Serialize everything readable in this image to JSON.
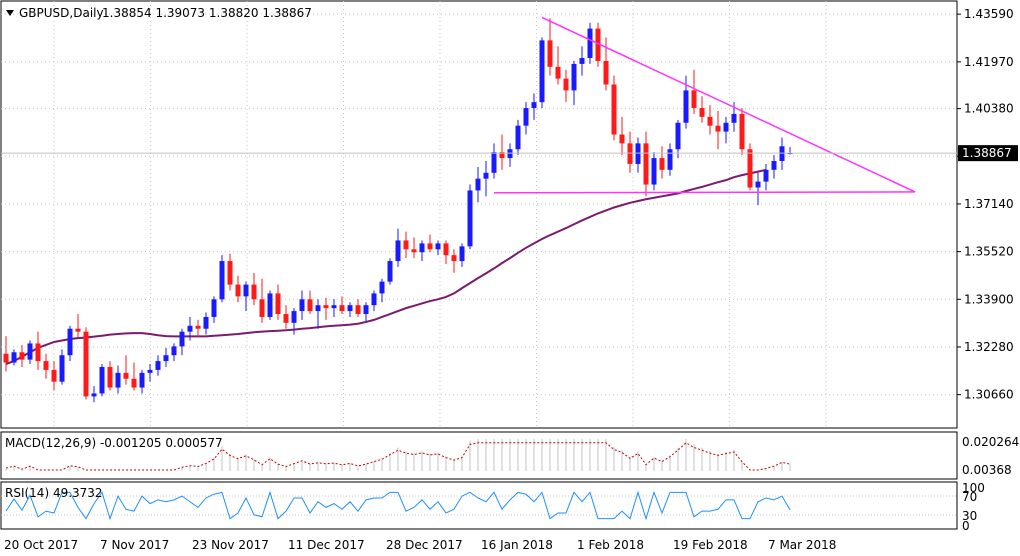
{
  "header": {
    "symbol": "GBPUSD,Daily",
    "ohlc": "1.38854 1.39073 1.38820 1.38867"
  },
  "current_price_label": "1.38867",
  "macd": {
    "label": "MACD(12,26,9) -0.001205 0.000577",
    "axis_labels": [
      "0.020264",
      "0.00368"
    ]
  },
  "rsi": {
    "label": "RSI(14) 49.3732",
    "axis_labels": [
      "100",
      "70",
      "30",
      "0"
    ]
  },
  "colors": {
    "bull": "#1a1aff",
    "bear": "#ff1a1a",
    "ma": "#7b1a6e",
    "triangle": "#ff33ff",
    "macd_hist": "#c0c0c0",
    "macd_signal": "#c00000",
    "rsi_line": "#1e90ff",
    "grid": "#c8c8c8"
  },
  "chart_data": [
    {
      "type": "candlestick",
      "title": "GBPUSD,Daily",
      "x_labels": [
        "20 Oct 2017",
        "7 Nov 2017",
        "23 Nov 2017",
        "11 Dec 2017",
        "28 Dec 2017",
        "16 Jan 2018",
        "1 Feb 2018",
        "19 Feb 2018",
        "7 Mar 2018"
      ],
      "y_tick_labels": [
        "1.43590",
        "1.41970",
        "1.40380",
        "1.38760",
        "1.37140",
        "1.35520",
        "1.33900",
        "1.32280",
        "1.30660"
      ],
      "ylim": [
        1.2956,
        1.4397
      ],
      "grid": true,
      "candles": [
        [
          1.3205,
          1.3265,
          1.3145,
          1.3175
        ],
        [
          1.3175,
          1.322,
          1.3165,
          1.321
        ],
        [
          1.321,
          1.3235,
          1.316,
          1.3185
        ],
        [
          1.3185,
          1.325,
          1.317,
          1.324
        ],
        [
          1.324,
          1.328,
          1.315,
          1.318
        ],
        [
          1.318,
          1.3205,
          1.312,
          1.315
        ],
        [
          1.315,
          1.318,
          1.308,
          1.311
        ],
        [
          1.311,
          1.322,
          1.31,
          1.32
        ],
        [
          1.32,
          1.33,
          1.318,
          1.329
        ],
        [
          1.329,
          1.334,
          1.326,
          1.328
        ],
        [
          1.328,
          1.3295,
          1.305,
          1.306
        ],
        [
          1.306,
          1.3095,
          1.304,
          1.307
        ],
        [
          1.307,
          1.317,
          1.306,
          1.316
        ],
        [
          1.316,
          1.318,
          1.308,
          1.309
        ],
        [
          1.309,
          1.3165,
          1.307,
          1.314
        ],
        [
          1.314,
          1.32,
          1.31,
          1.312
        ],
        [
          1.312,
          1.3175,
          1.308,
          1.309
        ],
        [
          1.309,
          1.315,
          1.307,
          1.314
        ],
        [
          1.314,
          1.317,
          1.311,
          1.315
        ],
        [
          1.315,
          1.32,
          1.313,
          1.318
        ],
        [
          1.318,
          1.3225,
          1.316,
          1.32
        ],
        [
          1.32,
          1.324,
          1.318,
          1.323
        ],
        [
          1.323,
          1.329,
          1.32,
          1.328
        ],
        [
          1.328,
          1.333,
          1.325,
          1.33
        ],
        [
          1.33,
          1.332,
          1.326,
          1.329
        ],
        [
          1.329,
          1.3345,
          1.327,
          1.333
        ],
        [
          1.333,
          1.34,
          1.331,
          1.339
        ],
        [
          1.339,
          1.354,
          1.338,
          1.352
        ],
        [
          1.352,
          1.3545,
          1.342,
          1.344
        ],
        [
          1.344,
          1.347,
          1.338,
          1.34
        ],
        [
          1.34,
          1.345,
          1.335,
          1.344
        ],
        [
          1.344,
          1.348,
          1.337,
          1.339
        ],
        [
          1.339,
          1.346,
          1.331,
          1.333
        ],
        [
          1.333,
          1.342,
          1.332,
          1.341
        ],
        [
          1.341,
          1.344,
          1.332,
          1.334
        ],
        [
          1.334,
          1.337,
          1.329,
          1.331
        ],
        [
          1.331,
          1.336,
          1.327,
          1.335
        ],
        [
          1.335,
          1.342,
          1.332,
          1.339
        ],
        [
          1.339,
          1.342,
          1.334,
          1.335
        ],
        [
          1.335,
          1.339,
          1.329,
          1.337
        ],
        [
          1.337,
          1.3395,
          1.332,
          1.336
        ],
        [
          1.336,
          1.339,
          1.333,
          1.337
        ],
        [
          1.337,
          1.34,
          1.334,
          1.335
        ],
        [
          1.335,
          1.338,
          1.333,
          1.337
        ],
        [
          1.337,
          1.339,
          1.333,
          1.334
        ],
        [
          1.334,
          1.338,
          1.331,
          1.337
        ],
        [
          1.337,
          1.342,
          1.335,
          1.341
        ],
        [
          1.341,
          1.346,
          1.338,
          1.345
        ],
        [
          1.345,
          1.353,
          1.344,
          1.352
        ],
        [
          1.352,
          1.363,
          1.35,
          1.359
        ],
        [
          1.359,
          1.362,
          1.353,
          1.356
        ],
        [
          1.356,
          1.36,
          1.353,
          1.355
        ],
        [
          1.355,
          1.359,
          1.352,
          1.358
        ],
        [
          1.358,
          1.361,
          1.355,
          1.356
        ],
        [
          1.356,
          1.359,
          1.354,
          1.358
        ],
        [
          1.358,
          1.359,
          1.351,
          1.354
        ],
        [
          1.354,
          1.356,
          1.348,
          1.352
        ],
        [
          1.352,
          1.358,
          1.35,
          1.357
        ],
        [
          1.357,
          1.378,
          1.356,
          1.376
        ],
        [
          1.376,
          1.384,
          1.372,
          1.38
        ],
        [
          1.38,
          1.386,
          1.374,
          1.382
        ],
        [
          1.382,
          1.392,
          1.38,
          1.389
        ],
        [
          1.389,
          1.395,
          1.383,
          1.387
        ],
        [
          1.387,
          1.392,
          1.384,
          1.39
        ],
        [
          1.39,
          1.4,
          1.388,
          1.398
        ],
        [
          1.398,
          1.406,
          1.395,
          1.404
        ],
        [
          1.404,
          1.409,
          1.4,
          1.406
        ],
        [
          1.406,
          1.428,
          1.404,
          1.427
        ],
        [
          1.427,
          1.4345,
          1.415,
          1.418
        ],
        [
          1.418,
          1.425,
          1.412,
          1.414
        ],
        [
          1.414,
          1.417,
          1.406,
          1.41
        ],
        [
          1.41,
          1.42,
          1.405,
          1.419
        ],
        [
          1.419,
          1.425,
          1.415,
          1.421
        ],
        [
          1.421,
          1.433,
          1.419,
          1.431
        ],
        [
          1.431,
          1.433,
          1.418,
          1.42
        ],
        [
          1.42,
          1.428,
          1.41,
          1.412
        ],
        [
          1.412,
          1.415,
          1.393,
          1.395
        ],
        [
          1.395,
          1.401,
          1.388,
          1.392
        ],
        [
          1.392,
          1.396,
          1.382,
          1.385
        ],
        [
          1.385,
          1.394,
          1.382,
          1.392
        ],
        [
          1.392,
          1.396,
          1.374,
          1.378
        ],
        [
          1.378,
          1.389,
          1.376,
          1.387
        ],
        [
          1.387,
          1.391,
          1.38,
          1.383
        ],
        [
          1.383,
          1.392,
          1.381,
          1.39
        ],
        [
          1.39,
          1.4,
          1.387,
          1.399
        ],
        [
          1.399,
          1.415,
          1.397,
          1.41
        ],
        [
          1.41,
          1.417,
          1.402,
          1.404
        ],
        [
          1.404,
          1.408,
          1.399,
          1.401
        ],
        [
          1.401,
          1.405,
          1.395,
          1.398
        ],
        [
          1.398,
          1.403,
          1.39,
          1.396
        ],
        [
          1.396,
          1.401,
          1.392,
          1.399
        ],
        [
          1.399,
          1.406,
          1.396,
          1.402
        ],
        [
          1.402,
          1.404,
          1.388,
          1.39
        ],
        [
          1.39,
          1.392,
          1.376,
          1.377
        ],
        [
          1.377,
          1.382,
          1.371,
          1.379
        ],
        [
          1.379,
          1.385,
          1.376,
          1.383
        ],
        [
          1.383,
          1.388,
          1.38,
          1.386
        ],
        [
          1.386,
          1.394,
          1.383,
          1.391
        ],
        [
          1.3885,
          1.3907,
          1.3882,
          1.3887
        ]
      ],
      "moving_average": [
        1.317,
        1.318,
        1.3195,
        1.321,
        1.3225,
        1.3235,
        1.3245,
        1.325,
        1.3255,
        1.3258,
        1.326,
        1.3263,
        1.3266,
        1.327,
        1.3272,
        1.3274,
        1.3275,
        1.3275,
        1.3272,
        1.3268,
        1.3265,
        1.3264,
        1.3264,
        1.3264,
        1.3264,
        1.3264,
        1.3266,
        1.3268,
        1.327,
        1.3272,
        1.3275,
        1.3278,
        1.328,
        1.3282,
        1.3283,
        1.3285,
        1.3287,
        1.329,
        1.3292,
        1.3295,
        1.3298,
        1.33,
        1.3302,
        1.3304,
        1.3307,
        1.3313,
        1.332,
        1.333,
        1.334,
        1.335,
        1.336,
        1.3368,
        1.3376,
        1.3384,
        1.339,
        1.3398,
        1.341,
        1.3428,
        1.3445,
        1.3462,
        1.3478,
        1.3495,
        1.3513,
        1.353,
        1.3548,
        1.3565,
        1.358,
        1.3595,
        1.3608,
        1.362,
        1.3632,
        1.3645,
        1.3658,
        1.367,
        1.3682,
        1.3692,
        1.3702,
        1.371,
        1.3718,
        1.3724,
        1.373,
        1.3735,
        1.374,
        1.3745,
        1.375,
        1.3758,
        1.3765,
        1.3772,
        1.378,
        1.3788,
        1.3795,
        1.3805,
        1.3812,
        1.3818,
        1.3824,
        1.383
      ],
      "triangle": {
        "apex_high": 1.4348,
        "upper_end": 1.3755,
        "support": 1.3752
      },
      "current_price": 1.38867
    },
    {
      "type": "bar",
      "title": "MACD(12,26,9) -0.001205 0.000577",
      "y_tick_labels": [
        "0.020264",
        "0.00368"
      ]
    },
    {
      "type": "line",
      "title": "RSI(14) 49.3732",
      "y_tick_labels": [
        "100",
        "70",
        "30",
        "0"
      ],
      "ylim": [
        0,
        100
      ]
    }
  ]
}
